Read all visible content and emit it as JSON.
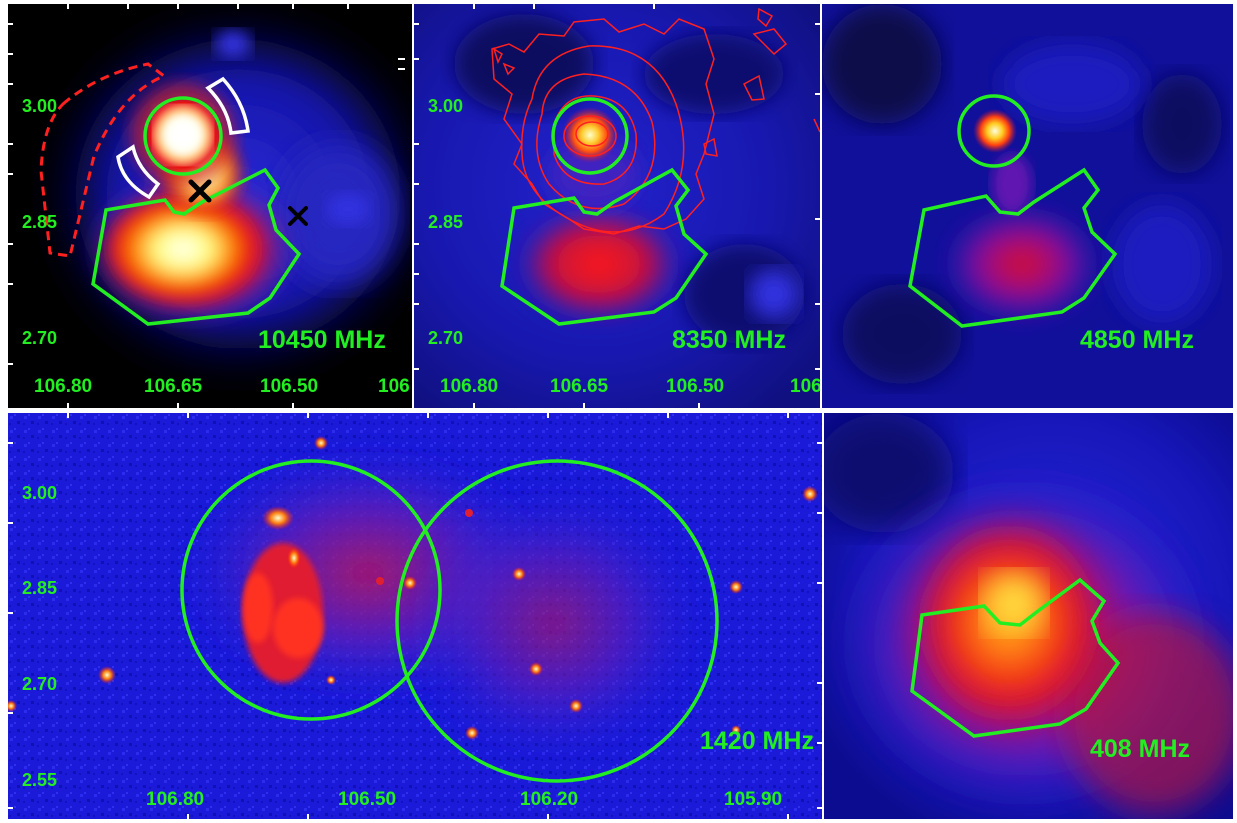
{
  "colors": {
    "contour_green": "#22ee22",
    "label_green": "#22ee22",
    "contour_red": "#ff2020",
    "marker_white": "#ffffff",
    "marker_black": "#000000",
    "background_blue": "#1010c8"
  },
  "panels": [
    {
      "frequency_label": "10450 MHz",
      "y_ticks": [
        "3.00",
        "2.85",
        "2.70"
      ],
      "x_ticks": [
        "106.80",
        "106.65",
        "106.50",
        "106"
      ]
    },
    {
      "frequency_label": "8350 MHz",
      "y_ticks": [
        "3.00",
        "2.85",
        "2.70"
      ],
      "x_ticks": [
        "106.80",
        "106.65",
        "106.50",
        "106"
      ]
    },
    {
      "frequency_label": "4850 MHz"
    },
    {
      "frequency_label": "1420 MHz",
      "y_ticks": [
        "3.00",
        "2.85",
        "2.70",
        "2.55"
      ],
      "x_ticks": [
        "106.80",
        "106.50",
        "106.20",
        "105.90"
      ]
    },
    {
      "frequency_label": "408 MHz"
    }
  ]
}
